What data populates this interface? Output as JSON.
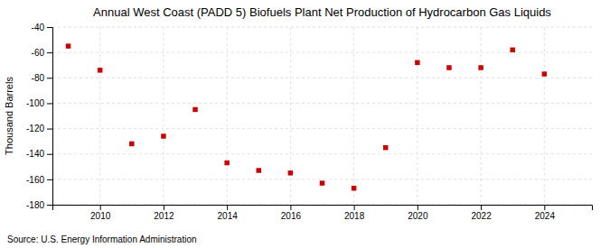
{
  "chart_data": {
    "type": "scatter",
    "title": "Annual West Coast (PADD 5) Biofuels Plant Net Production of Hydrocarbon Gas Liquids",
    "ylabel": "Thousand Barrels",
    "source": "Source: U.S. Energy Information Administration",
    "x": [
      2009,
      2010,
      2011,
      2012,
      2013,
      2014,
      2015,
      2016,
      2017,
      2018,
      2019,
      2020,
      2021,
      2022,
      2023,
      2024
    ],
    "values": [
      -55,
      -74,
      -132,
      -126,
      -105,
      -147,
      -153,
      -155,
      -163,
      -167,
      -135,
      -68,
      -72,
      -72,
      -58,
      -77
    ],
    "color": "#cc0000",
    "marker": "square",
    "xlim": [
      2008.5,
      2025.5
    ],
    "ylim": [
      -180,
      -40
    ],
    "xticks": [
      2010,
      2012,
      2014,
      2016,
      2018,
      2020,
      2022,
      2024
    ],
    "yticks": [
      -180,
      -160,
      -140,
      -120,
      -100,
      -80,
      -60,
      -40
    ],
    "grid": true
  }
}
